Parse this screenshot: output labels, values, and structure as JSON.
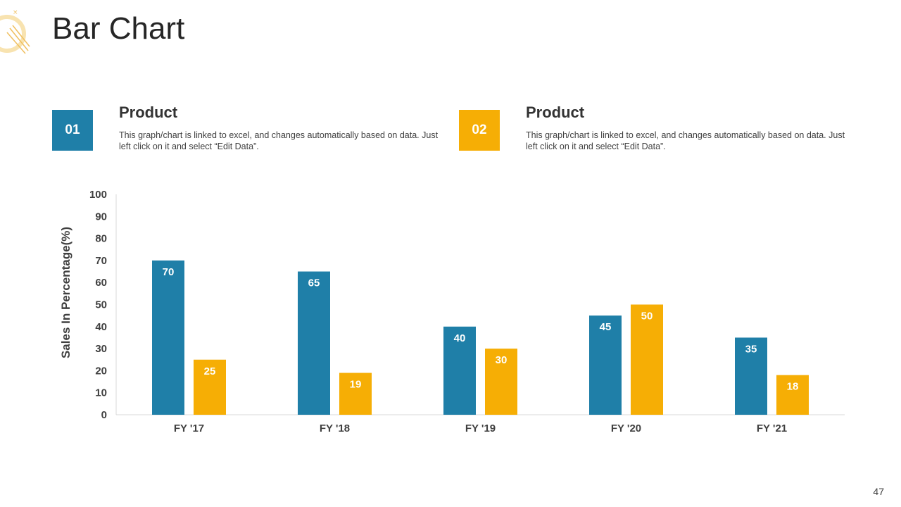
{
  "slide": {
    "title": "Bar Chart",
    "page_number": "47"
  },
  "blocks": [
    {
      "number": "01",
      "heading": "Product",
      "description": "This graph/chart is linked to excel, and changes automatically based on data. Just left click on it and select “Edit Data”.",
      "color": "#1F7FA8"
    },
    {
      "number": "02",
      "heading": "Product",
      "description": "This graph/chart is linked to excel, and changes automatically based on data. Just left click on it and select “Edit Data”.",
      "color": "#F6AE05"
    }
  ],
  "chart_data": {
    "type": "bar",
    "title": "",
    "xlabel": "",
    "ylabel": "Sales In Percentage(%)",
    "ylim": [
      0,
      100
    ],
    "yticks": [
      0,
      10,
      20,
      30,
      40,
      50,
      60,
      70,
      80,
      90,
      100
    ],
    "categories": [
      "FY '17",
      "FY '18",
      "FY '19",
      "FY '20",
      "FY '21"
    ],
    "series": [
      {
        "name": "Product 01",
        "color": "#1F7FA8",
        "values": [
          70,
          65,
          40,
          45,
          35
        ]
      },
      {
        "name": "Product 02",
        "color": "#F6AE05",
        "values": [
          25,
          19,
          30,
          50,
          18
        ]
      }
    ],
    "grid": false,
    "data_labels": true
  }
}
